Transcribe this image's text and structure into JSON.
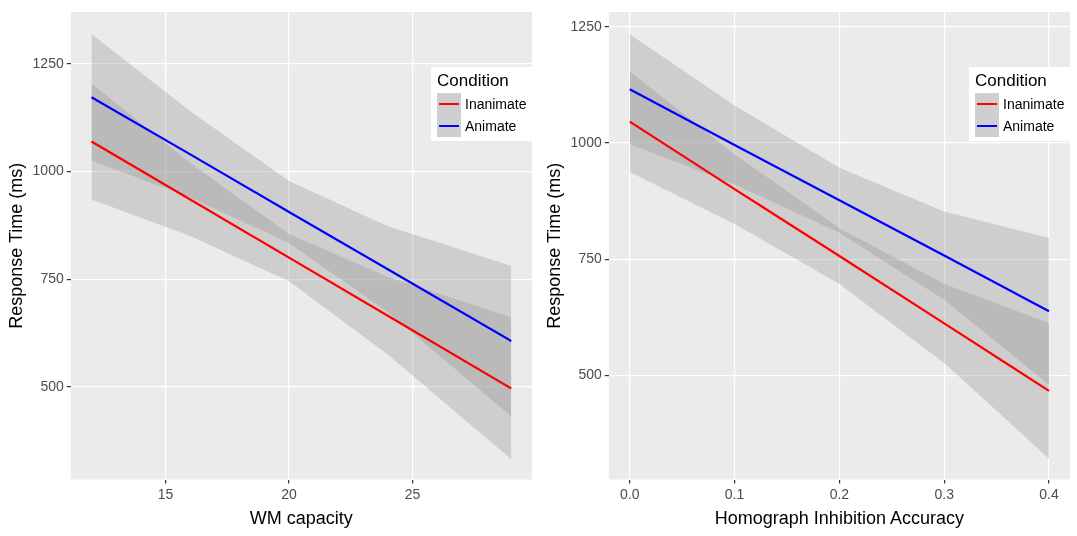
{
  "chart_data": [
    {
      "type": "line",
      "xlabel": "WM capacity",
      "ylabel": "Response Time (ms)",
      "legend_title": "Condition",
      "legend": "top right",
      "grid": true,
      "x": [
        12,
        16,
        20,
        24,
        29
      ],
      "xlim": [
        11.16,
        29.84
      ],
      "xticks": [
        15,
        20,
        25
      ],
      "ylim": [
        284,
        1371
      ],
      "yticks": [
        500,
        750,
        1000,
        1250
      ],
      "series": [
        {
          "name": "Inanimate",
          "color": "#ff0000",
          "values": [
            1070,
            935,
            800,
            665,
            496
          ],
          "lower": [
            935,
            850,
            745,
            575,
            331
          ],
          "upper": [
            1205,
            1020,
            855,
            755,
            661
          ]
        },
        {
          "name": "Animate",
          "color": "#0000ff",
          "values": [
            1173,
            1040,
            906,
            773,
            606
          ],
          "lower": [
            1026,
            940,
            834,
            673,
            431
          ],
          "upper": [
            1320,
            1140,
            978,
            873,
            781
          ]
        }
      ]
    },
    {
      "type": "line",
      "xlabel": "Homograph Inhibition Accuracy",
      "ylabel": "Response Time (ms)",
      "legend_title": "Condition",
      "legend": "top right",
      "grid": true,
      "x": [
        0,
        0.1,
        0.2,
        0.3,
        0.4
      ],
      "xlim": [
        -0.02,
        0.42
      ],
      "xticks": [
        {
          "value": 0,
          "label": "0.0"
        },
        0.1,
        0.2,
        0.3,
        0.4
      ],
      "ylim": [
        276,
        1282
      ],
      "yticks": [
        500,
        750,
        1000,
        1250
      ],
      "series": [
        {
          "name": "Inanimate",
          "color": "#ff0000",
          "values": [
            1046,
            901,
            757,
            612,
            467
          ],
          "lower": [
            938,
            826,
            697,
            527,
            321
          ],
          "upper": [
            1154,
            976,
            817,
            697,
            613
          ]
        },
        {
          "name": "Animate",
          "color": "#0000ff",
          "values": [
            1116,
            996,
            877,
            758,
            638
          ],
          "lower": [
            998,
            911,
            807,
            663,
            480
          ],
          "upper": [
            1234,
            1081,
            947,
            853,
            796
          ]
        }
      ]
    }
  ]
}
